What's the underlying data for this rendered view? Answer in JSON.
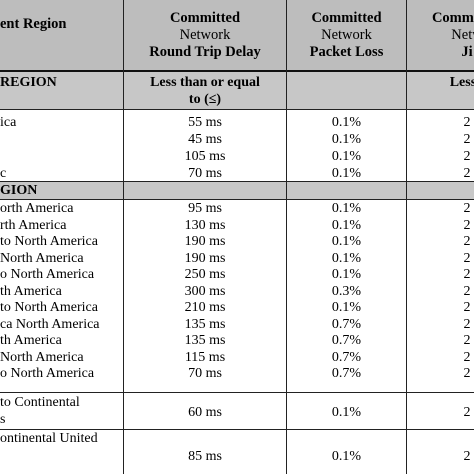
{
  "header": {
    "region": "ent Region",
    "delay": [
      "Committed",
      "Network",
      "Round Trip Delay"
    ],
    "loss": [
      "Committed",
      "Network",
      "Packet Loss"
    ],
    "jitter": [
      "Committed",
      "Netw",
      "Ji"
    ]
  },
  "section1": {
    "label": "REGION",
    "delay_note": [
      "Less than or equal",
      "to (≤)"
    ],
    "jitter_note": "Less t"
  },
  "rows1": [
    {
      "region": "ica",
      "delay": "55 ms",
      "loss": "0.1%",
      "jitter": "2"
    },
    {
      "region": "",
      "delay": "45 ms",
      "loss": "0.1%",
      "jitter": "2"
    },
    {
      "region": "",
      "delay": "105 ms",
      "loss": "0.1%",
      "jitter": "2"
    },
    {
      "region": "c",
      "delay": "70 ms",
      "loss": "0.1%",
      "jitter": "2"
    }
  ],
  "section2": {
    "label": "GION"
  },
  "rows2": [
    {
      "region": "orth  America",
      "delay": "95 ms",
      "loss": "0.1%",
      "jitter": "2"
    },
    {
      "region": "rth  America",
      "delay": "130 ms",
      "loss": "0.1%",
      "jitter": "2"
    },
    {
      "region": "to North  America",
      "delay": "190 ms",
      "loss": "0.1%",
      "jitter": "2"
    },
    {
      "region": "North  America",
      "delay": "190 ms",
      "loss": "0.1%",
      "jitter": "2"
    },
    {
      "region": "o North America",
      "delay": "250 ms",
      "loss": "0.1%",
      "jitter": "2"
    },
    {
      "region": "th  America",
      "delay": "300 ms",
      "loss": "0.3%",
      "jitter": "2"
    },
    {
      "region": "to North America",
      "delay": "210 ms",
      "loss": "0.1%",
      "jitter": "2"
    },
    {
      "region": "ca North  America",
      "delay": "135 ms",
      "loss": "0.7%",
      "jitter": "2"
    },
    {
      "region": "th  America",
      "delay": "135 ms",
      "loss": "0.7%",
      "jitter": "2"
    },
    {
      "region": "North  America",
      "delay": "115 ms",
      "loss": "0.7%",
      "jitter": "2"
    },
    {
      "region": "o North  America",
      "delay": "70 ms",
      "loss": "0.7%",
      "jitter": "2"
    }
  ],
  "row_continental_a": {
    "region": [
      "to Continental",
      "s"
    ],
    "delay": "60 ms",
    "loss": "0.1%",
    "jitter": "2"
  },
  "row_continental_b": {
    "region": [
      "ontinental United",
      ""
    ],
    "delay": "85 ms",
    "loss": "0.1%",
    "jitter": "2"
  }
}
